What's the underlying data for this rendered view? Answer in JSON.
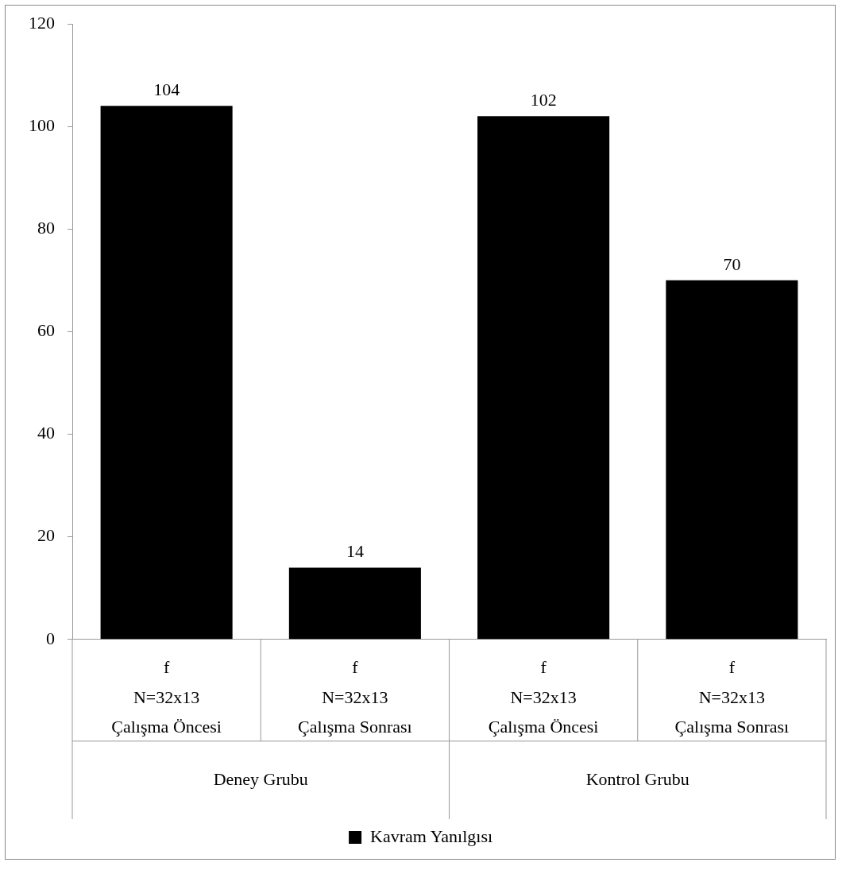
{
  "chart_data": {
    "type": "bar",
    "categories": [
      "f\nN=32x13\nÇalışma Öncesi",
      "f\nN=32x13\nÇalışma Sonrası",
      "f\nN=32x13\nÇalışma Öncesi",
      "f\nN=32x13\nÇalışma Sonrası"
    ],
    "series": [
      {
        "name": "Kavram Yanılgısı",
        "color": "#000000",
        "values": [
          104,
          14,
          102,
          70
        ]
      }
    ],
    "annotations": [
      "Deney Grubu",
      "Kontrol Grubu"
    ],
    "ylim": [
      0,
      120
    ],
    "yticks": [
      0,
      20,
      40,
      60,
      80,
      100,
      120
    ],
    "grid": false,
    "legend": "bottom",
    "data_labels": true
  }
}
